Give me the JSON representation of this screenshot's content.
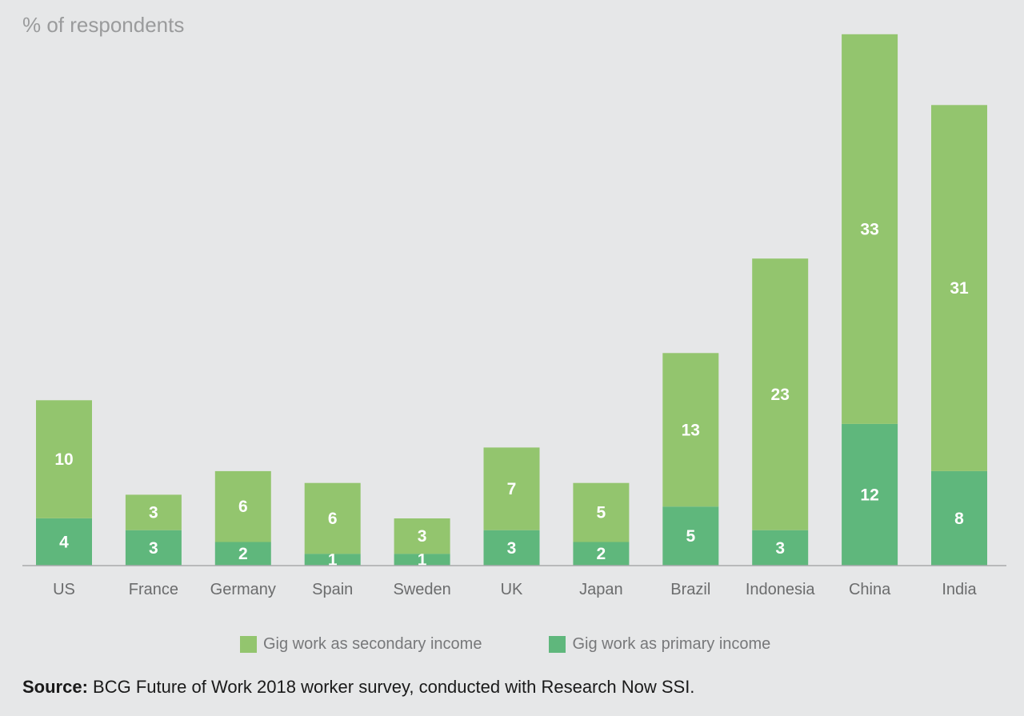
{
  "chart_data": {
    "type": "bar",
    "stacked": true,
    "ylabel": "% of respondents",
    "ylim": [
      0,
      46
    ],
    "grid": false,
    "legend_position": "bottom",
    "categories": [
      "US",
      "France",
      "Germany",
      "Spain",
      "Sweden",
      "UK",
      "Japan",
      "Brazil",
      "Indonesia",
      "China",
      "India"
    ],
    "series": [
      {
        "name": "Gig work as primary income",
        "color": "#5fb77c",
        "values": [
          4,
          3,
          2,
          1,
          1,
          3,
          2,
          5,
          3,
          12,
          8
        ]
      },
      {
        "name": "Gig work as secondary income",
        "color": "#93c56e",
        "values": [
          10,
          3,
          6,
          6,
          3,
          7,
          5,
          13,
          23,
          33,
          31
        ]
      }
    ],
    "legend_order": [
      1,
      0
    ]
  },
  "source": {
    "label": "Source:",
    "text": " BCG Future of Work 2018 worker survey, conducted with Research Now SSI."
  }
}
